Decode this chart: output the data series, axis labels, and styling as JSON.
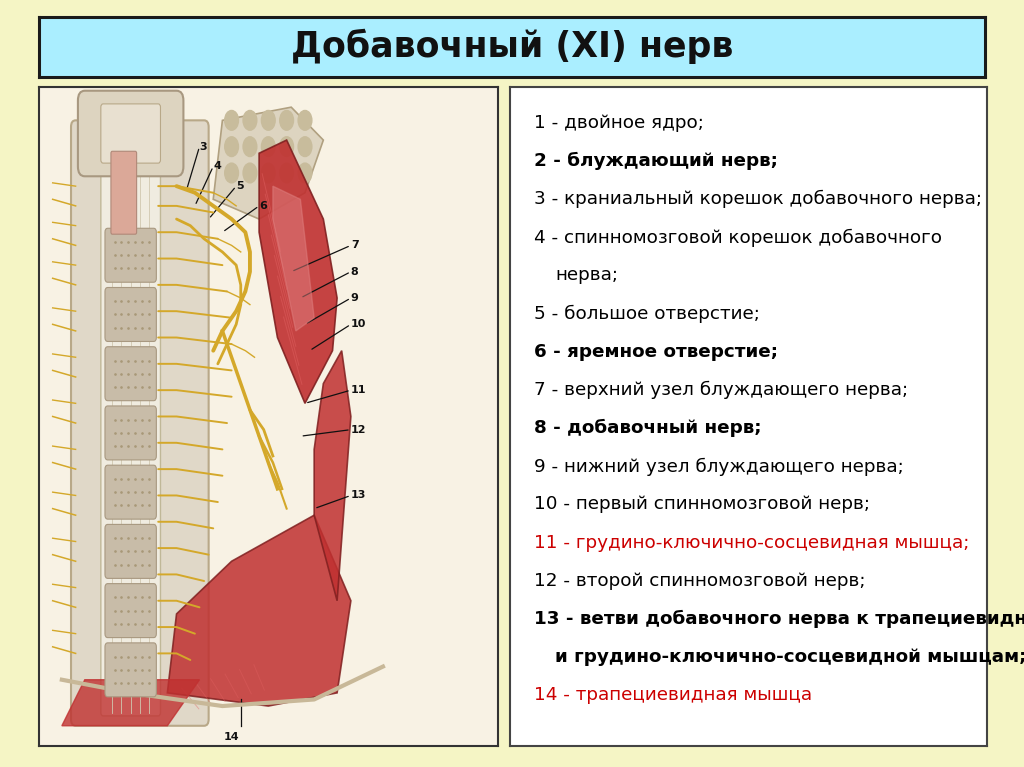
{
  "title": "Добавочный (XI) нерв",
  "title_bg": "#aaeeff",
  "page_bg": "#f5f5c5",
  "text_box_bg": "#ffffff",
  "image_box_bg": "#ffffff",
  "title_fontsize": 25,
  "text_fontsize": 13.2,
  "items": [
    {
      "num": "1",
      "text": " - двойное ядро;",
      "bold": false,
      "color": "#000000",
      "cont": false
    },
    {
      "num": "2",
      "text": " - блуждающий нерв;",
      "bold": true,
      "color": "#000000",
      "cont": false
    },
    {
      "num": "3",
      "text": " - краниальный корешок добавочного нерва;",
      "bold": false,
      "color": "#000000",
      "cont": false
    },
    {
      "num": "4",
      "text": " - спинномозговой корешок добавочного",
      "bold": false,
      "color": "#000000",
      "cont": false
    },
    {
      "num": "",
      "text": "   нерва;",
      "bold": false,
      "color": "#000000",
      "cont": true
    },
    {
      "num": "5",
      "text": " - большое отверстие;",
      "bold": false,
      "color": "#000000",
      "cont": false
    },
    {
      "num": "6",
      "text": " - яремное отверстие;",
      "bold": true,
      "color": "#000000",
      "cont": false
    },
    {
      "num": "7",
      "text": " - верхний узел блуждающего нерва;",
      "bold": false,
      "color": "#000000",
      "cont": false
    },
    {
      "num": "8",
      "text": " - добавочный нерв;",
      "bold": true,
      "color": "#000000",
      "cont": false
    },
    {
      "num": "9",
      "text": " - нижний узел блуждающего нерва;",
      "bold": false,
      "color": "#000000",
      "cont": false
    },
    {
      "num": "10",
      "text": " - первый спинномозговой нерв;",
      "bold": false,
      "color": "#000000",
      "cont": false
    },
    {
      "num": "11",
      "text": " - грудино-ключично-сосцевидная мышца;",
      "bold": false,
      "color": "#cc0000",
      "cont": false
    },
    {
      "num": "12",
      "text": " - второй спинномозговой нерв;",
      "bold": false,
      "color": "#000000",
      "cont": false
    },
    {
      "num": "13",
      "text": " - ветви добавочного нерва к трапециевидной",
      "bold": true,
      "color": "#000000",
      "cont": false
    },
    {
      "num": "",
      "text": "    и грудино-ключично-сосцевидной мышцам;",
      "bold": true,
      "color": "#000000",
      "cont": true
    },
    {
      "num": "14",
      "text": " - трапециевидная мышца",
      "bold": false,
      "color": "#cc0000",
      "cont": false
    }
  ]
}
